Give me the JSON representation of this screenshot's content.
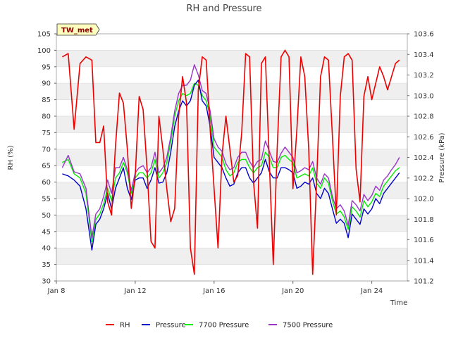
{
  "chart_data": {
    "type": "line",
    "title": "RH and Pressure",
    "badge": "TW_met",
    "xlabel": "Time",
    "ylabel_left": "RH (%)",
    "ylabel_right": "Pressure (kPa)",
    "x_ticks": [
      "Jan 8",
      "Jan 12",
      "Jan 16",
      "Jan 20",
      "Jan 24"
    ],
    "x_tick_days": [
      8,
      12,
      16,
      20,
      24
    ],
    "xlim": [
      8,
      25.8
    ],
    "y_left_ticks": [
      30,
      35,
      40,
      45,
      50,
      55,
      60,
      65,
      70,
      75,
      80,
      85,
      90,
      95,
      100,
      105
    ],
    "y_left_lim": [
      30,
      105
    ],
    "y_right_ticks": [
      "101.2",
      "101.4",
      "101.6",
      "101.8",
      "102.0",
      "102.2",
      "102.4",
      "102.6",
      "102.8",
      "103.0",
      "103.2",
      "103.4",
      "103.6"
    ],
    "y_right_lim": [
      101.2,
      103.6
    ],
    "grid": true,
    "legend_position": "bottom",
    "x": [
      8.3,
      8.6,
      8.9,
      9.2,
      9.5,
      9.8,
      10.0,
      10.2,
      10.4,
      10.6,
      10.8,
      11.0,
      11.2,
      11.4,
      11.6,
      11.8,
      12.0,
      12.2,
      12.4,
      12.6,
      12.8,
      13.0,
      13.2,
      13.4,
      13.6,
      13.8,
      14.0,
      14.2,
      14.4,
      14.6,
      14.8,
      15.0,
      15.2,
      15.4,
      15.6,
      15.8,
      16.0,
      16.2,
      16.4,
      16.6,
      16.8,
      17.0,
      17.2,
      17.4,
      17.6,
      17.8,
      18.0,
      18.2,
      18.4,
      18.6,
      18.8,
      19.0,
      19.2,
      19.4,
      19.6,
      19.8,
      20.0,
      20.2,
      20.4,
      20.6,
      20.8,
      21.0,
      21.2,
      21.4,
      21.6,
      21.8,
      22.0,
      22.2,
      22.4,
      22.6,
      22.8,
      23.0,
      23.2,
      23.4,
      23.6,
      23.8,
      24.0,
      24.2,
      24.4,
      24.6,
      24.8,
      25.0,
      25.2,
      25.4
    ],
    "series": [
      {
        "name": "RH",
        "color": "#ee0000",
        "axis": "left",
        "values": [
          98,
          99,
          76,
          96,
          98,
          97,
          72,
          72,
          77,
          54,
          50,
          71,
          87,
          84,
          70,
          52,
          62,
          86,
          82,
          64,
          42,
          40,
          80,
          70,
          58,
          48,
          52,
          80,
          92,
          84,
          40,
          32,
          88,
          98,
          97,
          76,
          58,
          40,
          68,
          80,
          70,
          60,
          62,
          75,
          99,
          98,
          60,
          46,
          96,
          98,
          66,
          35,
          70,
          98,
          100,
          98,
          58,
          76,
          98,
          92,
          70,
          32,
          60,
          92,
          98,
          97,
          74,
          50,
          86,
          98,
          99,
          97,
          64,
          54,
          86,
          92,
          85,
          90,
          95,
          92,
          88,
          92,
          96,
          97
        ]
      },
      {
        "name": "Pressure",
        "color": "#0000cc",
        "axis": "right",
        "values": [
          102.24,
          102.22,
          102.18,
          102.12,
          101.9,
          101.5,
          101.75,
          101.8,
          101.9,
          102.05,
          101.9,
          102.1,
          102.2,
          102.3,
          102.1,
          101.99,
          102.18,
          102.2,
          102.2,
          102.1,
          102.18,
          102.3,
          102.15,
          102.16,
          102.25,
          102.45,
          102.7,
          102.85,
          102.95,
          102.9,
          102.95,
          103.1,
          103.15,
          102.95,
          102.9,
          102.7,
          102.4,
          102.35,
          102.3,
          102.2,
          102.12,
          102.14,
          102.25,
          102.3,
          102.3,
          102.2,
          102.15,
          102.2,
          102.25,
          102.38,
          102.26,
          102.2,
          102.2,
          102.3,
          102.3,
          102.28,
          102.25,
          102.1,
          102.12,
          102.16,
          102.14,
          102.2,
          102.05,
          102.0,
          102.1,
          102.05,
          101.9,
          101.76,
          101.8,
          101.76,
          101.62,
          101.85,
          101.8,
          101.75,
          101.9,
          101.85,
          101.9,
          102.0,
          101.95,
          102.05,
          102.1,
          102.15,
          102.2,
          102.25
        ]
      },
      {
        "name": "7700 Pressure",
        "color": "#00ee00",
        "axis": "right",
        "values": [
          102.35,
          102.38,
          102.24,
          102.2,
          102.05,
          101.58,
          101.8,
          101.85,
          101.95,
          102.1,
          101.98,
          102.2,
          102.25,
          102.35,
          102.25,
          102.05,
          102.2,
          102.25,
          102.25,
          102.2,
          102.25,
          102.38,
          102.2,
          102.25,
          102.35,
          102.55,
          102.8,
          102.95,
          103.02,
          103.0,
          103.02,
          103.12,
          103.1,
          103.0,
          102.95,
          102.8,
          102.5,
          102.45,
          102.4,
          102.28,
          102.22,
          102.25,
          102.35,
          102.38,
          102.38,
          102.3,
          102.25,
          102.3,
          102.32,
          102.45,
          102.4,
          102.3,
          102.3,
          102.4,
          102.42,
          102.38,
          102.35,
          102.2,
          102.22,
          102.24,
          102.22,
          102.3,
          102.15,
          102.1,
          102.2,
          102.15,
          101.98,
          101.85,
          101.88,
          101.82,
          101.7,
          101.92,
          101.88,
          101.82,
          101.98,
          101.92,
          101.97,
          102.05,
          102.02,
          102.12,
          102.17,
          102.22,
          102.27,
          102.3
        ]
      },
      {
        "name": "7500 Pressure",
        "color": "#9933cc",
        "axis": "right",
        "values": [
          102.3,
          102.42,
          102.26,
          102.24,
          102.1,
          101.62,
          101.85,
          101.9,
          102.02,
          102.18,
          102.05,
          102.3,
          102.3,
          102.4,
          102.28,
          102.08,
          102.25,
          102.3,
          102.32,
          102.25,
          102.3,
          102.45,
          102.25,
          102.3,
          102.4,
          102.6,
          102.85,
          103.02,
          103.1,
          103.1,
          103.15,
          103.3,
          103.2,
          103.05,
          103.02,
          102.85,
          102.58,
          102.5,
          102.46,
          102.34,
          102.28,
          102.3,
          102.4,
          102.45,
          102.45,
          102.36,
          102.3,
          102.36,
          102.38,
          102.56,
          102.46,
          102.36,
          102.35,
          102.44,
          102.5,
          102.45,
          102.4,
          102.25,
          102.27,
          102.3,
          102.28,
          102.36,
          102.2,
          102.14,
          102.24,
          102.2,
          102.02,
          101.9,
          101.94,
          101.88,
          101.74,
          101.98,
          101.94,
          101.88,
          102.04,
          101.98,
          102.03,
          102.12,
          102.08,
          102.18,
          102.22,
          102.28,
          102.33,
          102.4
        ]
      }
    ]
  }
}
